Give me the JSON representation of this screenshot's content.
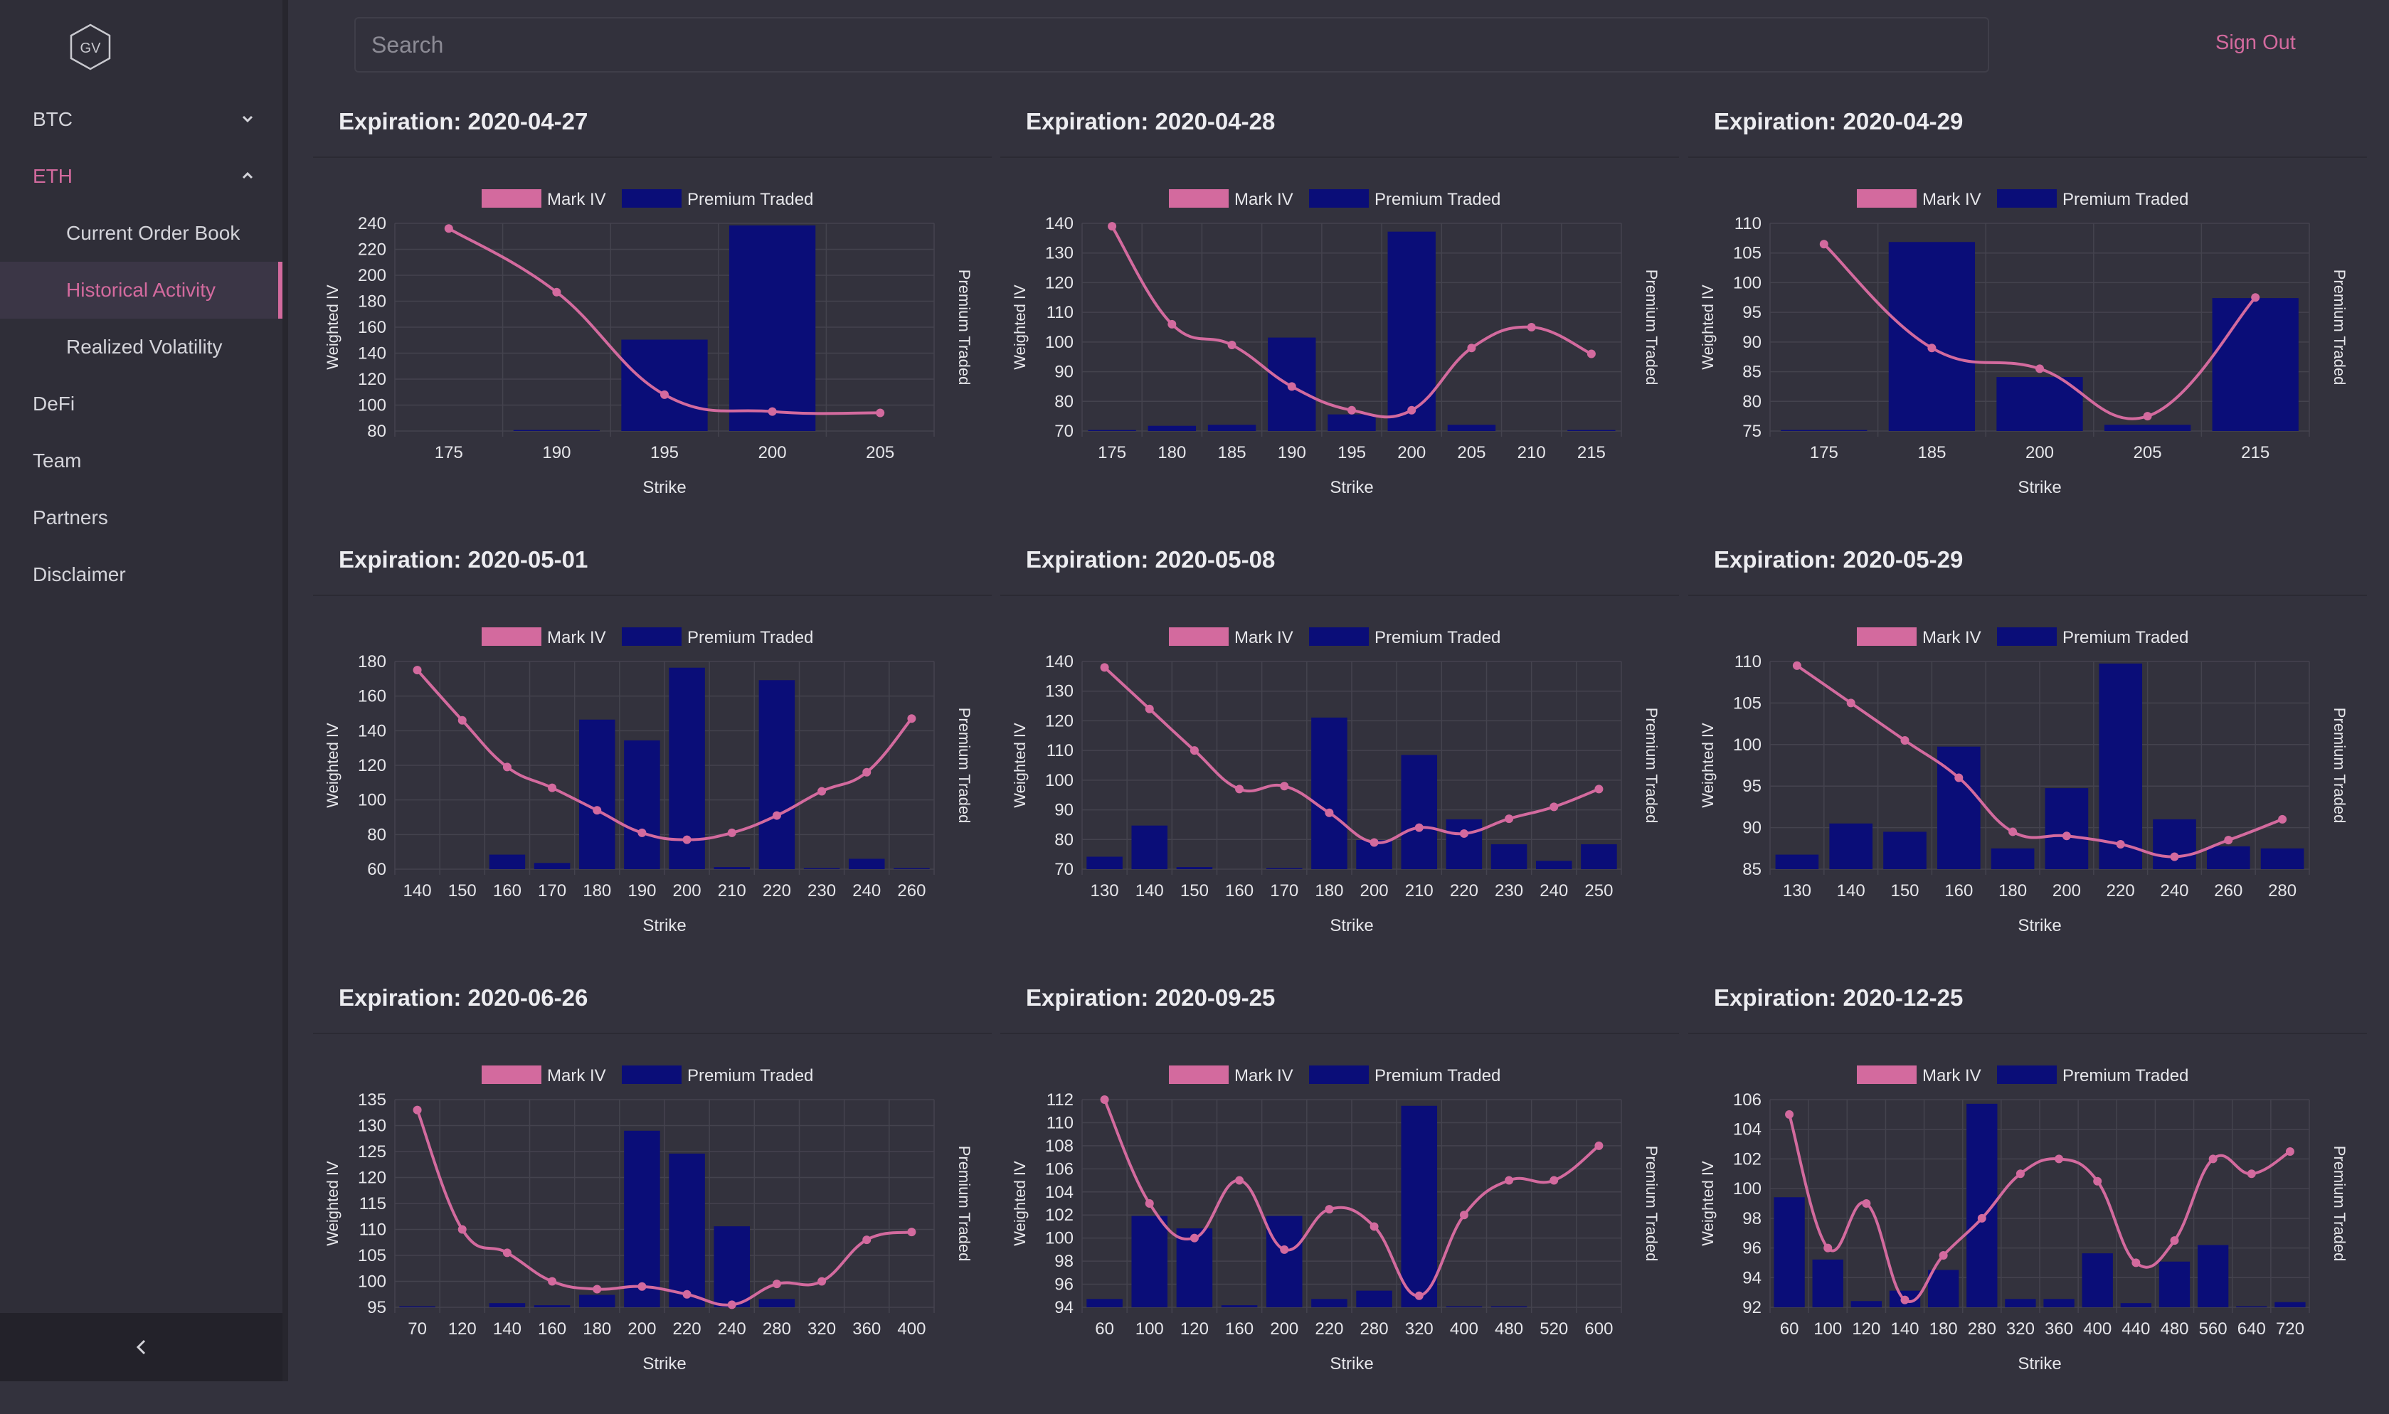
{
  "app": {
    "logo_text": "GV",
    "search": {
      "placeholder": "Search",
      "value": ""
    },
    "sign_out": "Sign Out",
    "colors": {
      "accent": "#d36a9e",
      "bar": "#0a0d78",
      "background": "#33323d"
    }
  },
  "sidebar": {
    "items": [
      {
        "label": "BTC",
        "icon": "chevron-down-icon"
      },
      {
        "label": "ETH",
        "icon": "chevron-up-icon",
        "expanded": true
      },
      {
        "label": "Current Order Book"
      },
      {
        "label": "Historical Activity",
        "active": true
      },
      {
        "label": "Realized Volatility"
      },
      {
        "label": "DeFi"
      },
      {
        "label": "Team"
      },
      {
        "label": "Partners"
      },
      {
        "label": "Disclaimer"
      }
    ],
    "collapse_icon": "chevron-left-icon"
  },
  "chart_data": [
    {
      "type": "bar+line",
      "title": "Expiration: 2020-04-27",
      "legend": [
        "Mark IV",
        "Premium Traded"
      ],
      "xlabel": "Strike",
      "ylabel": "Weighted IV",
      "y2label": "Premium Traded",
      "categories": [
        "175",
        "190",
        "195",
        "200",
        "205"
      ],
      "y_ticks": [
        80,
        100,
        120,
        140,
        160,
        180,
        200,
        220,
        240
      ],
      "ylim": [
        80,
        240
      ],
      "series": [
        {
          "name": "Mark IV",
          "type": "line",
          "values": [
            236,
            187,
            108,
            95,
            94
          ]
        },
        {
          "name": "Premium Traded",
          "type": "bar",
          "values": [
            0,
            0.005,
            0.44,
            0.99,
            0
          ]
        }
      ]
    },
    {
      "type": "bar+line",
      "title": "Expiration: 2020-04-28",
      "legend": [
        "Mark IV",
        "Premium Traded"
      ],
      "xlabel": "Strike",
      "ylabel": "Weighted IV",
      "y2label": "Premium Traded",
      "categories": [
        "175",
        "180",
        "185",
        "190",
        "195",
        "200",
        "205",
        "210",
        "215"
      ],
      "y_ticks": [
        70,
        80,
        90,
        100,
        110,
        120,
        130,
        140
      ],
      "ylim": [
        70,
        140
      ],
      "series": [
        {
          "name": "Mark IV",
          "type": "line",
          "values": [
            139,
            106,
            99,
            85,
            77,
            77,
            98,
            105,
            96
          ]
        },
        {
          "name": "Premium Traded",
          "type": "bar",
          "values": [
            0.005,
            0.025,
            0.03,
            0.45,
            0.08,
            0.96,
            0.03,
            0,
            0.005
          ]
        }
      ]
    },
    {
      "type": "bar+line",
      "title": "Expiration: 2020-04-29",
      "legend": [
        "Mark IV",
        "Premium Traded"
      ],
      "xlabel": "Strike",
      "ylabel": "Weighted IV",
      "y2label": "Premium Traded",
      "categories": [
        "175",
        "185",
        "200",
        "205",
        "215"
      ],
      "y_ticks": [
        75,
        80,
        85,
        90,
        95,
        100,
        105,
        110
      ],
      "ylim": [
        75,
        110
      ],
      "series": [
        {
          "name": "Mark IV",
          "type": "line",
          "values": [
            106.5,
            89,
            85.5,
            77.5,
            97.5
          ]
        },
        {
          "name": "Premium Traded",
          "type": "bar",
          "values": [
            0.005,
            0.91,
            0.26,
            0.03,
            0.64
          ]
        }
      ]
    },
    {
      "type": "bar+line",
      "title": "Expiration: 2020-05-01",
      "legend": [
        "Mark IV",
        "Premium Traded"
      ],
      "xlabel": "Strike",
      "ylabel": "Weighted IV",
      "y2label": "Premium Traded",
      "categories": [
        "140",
        "150",
        "160",
        "170",
        "180",
        "190",
        "200",
        "210",
        "220",
        "230",
        "240",
        "260"
      ],
      "y_ticks": [
        60,
        80,
        100,
        120,
        140,
        160,
        180
      ],
      "ylim": [
        60,
        180
      ],
      "series": [
        {
          "name": "Mark IV",
          "type": "line",
          "values": [
            175,
            146,
            119,
            107,
            94,
            81,
            77,
            81,
            91,
            105,
            116,
            147
          ]
        },
        {
          "name": "Premium Traded",
          "type": "bar",
          "values": [
            0,
            0,
            0.07,
            0.03,
            0.72,
            0.62,
            0.97,
            0.01,
            0.91,
            0.005,
            0.05,
            0.005
          ]
        }
      ]
    },
    {
      "type": "bar+line",
      "title": "Expiration: 2020-05-08",
      "legend": [
        "Mark IV",
        "Premium Traded"
      ],
      "xlabel": "Strike",
      "ylabel": "Weighted IV",
      "y2label": "Premium Traded",
      "categories": [
        "130",
        "140",
        "150",
        "160",
        "170",
        "180",
        "200",
        "210",
        "220",
        "230",
        "240",
        "250"
      ],
      "y_ticks": [
        70,
        80,
        90,
        100,
        110,
        120,
        130,
        140
      ],
      "ylim": [
        70,
        140
      ],
      "series": [
        {
          "name": "Mark IV",
          "type": "line",
          "values": [
            138,
            124,
            110,
            97,
            98,
            89,
            79,
            84,
            82,
            87,
            91,
            97
          ]
        },
        {
          "name": "Premium Traded",
          "type": "bar",
          "values": [
            0.06,
            0.21,
            0.01,
            0,
            0.005,
            0.73,
            0.14,
            0.55,
            0.24,
            0.12,
            0.04,
            0.12
          ]
        }
      ]
    },
    {
      "type": "bar+line",
      "title": "Expiration: 2020-05-29",
      "legend": [
        "Mark IV",
        "Premium Traded"
      ],
      "xlabel": "Strike",
      "ylabel": "Weighted IV",
      "y2label": "Premium Traded",
      "categories": [
        "130",
        "140",
        "150",
        "160",
        "180",
        "200",
        "220",
        "240",
        "260",
        "280"
      ],
      "y_ticks": [
        85,
        90,
        95,
        100,
        105,
        110
      ],
      "ylim": [
        85,
        110
      ],
      "series": [
        {
          "name": "Mark IV",
          "type": "line",
          "values": [
            109.5,
            105,
            100.5,
            96,
            89.5,
            89,
            88,
            86.5,
            88.5,
            91
          ]
        },
        {
          "name": "Premium Traded",
          "type": "bar",
          "values": [
            0.07,
            0.22,
            0.18,
            0.59,
            0.1,
            0.39,
            0.99,
            0.24,
            0.11,
            0.1
          ]
        }
      ]
    },
    {
      "type": "bar+line",
      "title": "Expiration: 2020-06-26",
      "legend": [
        "Mark IV",
        "Premium Traded"
      ],
      "xlabel": "Strike",
      "ylabel": "Weighted IV",
      "y2label": "Premium Traded",
      "categories": [
        "70",
        "120",
        "140",
        "160",
        "180",
        "200",
        "220",
        "240",
        "280",
        "320",
        "360",
        "400"
      ],
      "y_ticks": [
        95,
        100,
        105,
        110,
        115,
        120,
        125,
        130,
        135
      ],
      "ylim": [
        95,
        135
      ],
      "series": [
        {
          "name": "Mark IV",
          "type": "line",
          "values": [
            133,
            110,
            105.5,
            100,
            98.5,
            99,
            97.5,
            95.5,
            99.5,
            100,
            108,
            109.5
          ]
        },
        {
          "name": "Premium Traded",
          "type": "bar",
          "values": [
            0.005,
            0,
            0.02,
            0.01,
            0.06,
            0.85,
            0.74,
            0.39,
            0.04,
            0,
            0,
            0
          ]
        }
      ]
    },
    {
      "type": "bar+line",
      "title": "Expiration: 2020-09-25",
      "legend": [
        "Mark IV",
        "Premium Traded"
      ],
      "xlabel": "Strike",
      "ylabel": "Weighted IV",
      "y2label": "Premium Traded",
      "categories": [
        "60",
        "100",
        "120",
        "160",
        "200",
        "220",
        "280",
        "320",
        "400",
        "480",
        "520",
        "600"
      ],
      "y_ticks": [
        94,
        96,
        98,
        100,
        102,
        104,
        106,
        108,
        110,
        112
      ],
      "ylim": [
        94,
        112
      ],
      "series": [
        {
          "name": "Mark IV",
          "type": "line",
          "values": [
            112,
            103,
            100,
            105,
            99,
            102.5,
            101,
            95,
            102,
            105,
            105,
            108
          ]
        },
        {
          "name": "Premium Traded",
          "type": "bar",
          "values": [
            0.04,
            0.44,
            0.38,
            0.01,
            0.44,
            0.04,
            0.08,
            0.97,
            0.005,
            0.005,
            0,
            0
          ]
        }
      ]
    },
    {
      "type": "bar+line",
      "title": "Expiration: 2020-12-25",
      "legend": [
        "Mark IV",
        "Premium Traded"
      ],
      "xlabel": "Strike",
      "ylabel": "Weighted IV",
      "y2label": "Premium Traded",
      "categories": [
        "60",
        "100",
        "120",
        "140",
        "180",
        "280",
        "320",
        "360",
        "400",
        "440",
        "480",
        "560",
        "640",
        "720"
      ],
      "y_ticks": [
        92,
        94,
        96,
        98,
        100,
        102,
        104,
        106
      ],
      "ylim": [
        92,
        106
      ],
      "series": [
        {
          "name": "Mark IV",
          "type": "line",
          "values": [
            105,
            96,
            99,
            92.5,
            95.5,
            98,
            101,
            102,
            100.5,
            95,
            96.5,
            102,
            101,
            102.5
          ]
        },
        {
          "name": "Premium Traded",
          "type": "bar",
          "values": [
            0.53,
            0.23,
            0.03,
            0.08,
            0.18,
            0.98,
            0.04,
            0.04,
            0.26,
            0.02,
            0.22,
            0.3,
            0.005,
            0.025
          ]
        }
      ]
    }
  ]
}
